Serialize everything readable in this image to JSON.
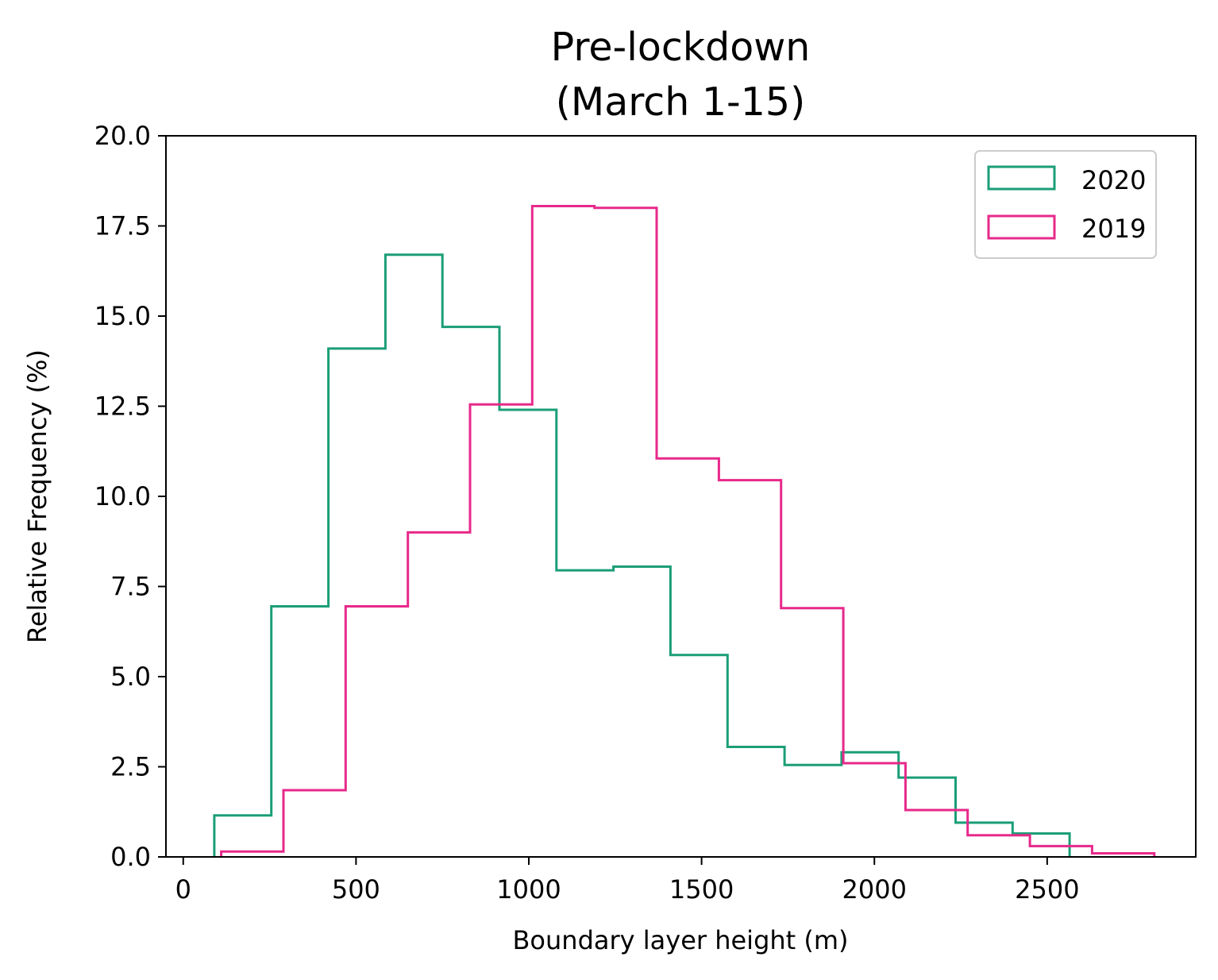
{
  "chart_data": {
    "type": "histogram-step",
    "title": [
      "Pre-lockdown",
      "(March 1-15)"
    ],
    "xlabel": "Boundary layer height (m)",
    "ylabel": "Relative Frequency (%)",
    "xlim": [
      -50,
      2930
    ],
    "ylim": [
      0,
      20
    ],
    "xticks": [
      0,
      500,
      1000,
      1500,
      2000,
      2500
    ],
    "xtick_labels": [
      "0",
      "500",
      "1000",
      "1500",
      "2000",
      "2500"
    ],
    "yticks": [
      0,
      2.5,
      5,
      7.5,
      10,
      12.5,
      15,
      17.5,
      20
    ],
    "ytick_labels": [
      "0.0",
      "2.5",
      "5.0",
      "7.5",
      "10.0",
      "12.5",
      "15.0",
      "17.5",
      "20.0"
    ],
    "grid": false,
    "legend_position": "top-right",
    "series": [
      {
        "name": "2020",
        "color": "#1b9e77",
        "bin_edges": [
          90,
          255,
          420,
          585,
          750,
          915,
          1080,
          1245,
          1410,
          1575,
          1740,
          1905,
          2070,
          2235,
          2400,
          2565
        ],
        "values": [
          1.15,
          6.95,
          14.1,
          16.7,
          14.7,
          12.4,
          7.95,
          8.05,
          5.6,
          3.05,
          2.55,
          2.9,
          2.2,
          0.95,
          0.65
        ]
      },
      {
        "name": "2019",
        "color": "#e7298a",
        "bin_edges": [
          110,
          290,
          470,
          650,
          830,
          1010,
          1190,
          1370,
          1550,
          1730,
          1910,
          2090,
          2270,
          2450,
          2630,
          2810
        ],
        "values": [
          0.15,
          1.85,
          6.95,
          9.0,
          12.55,
          18.05,
          18.0,
          11.05,
          10.45,
          6.9,
          2.6,
          1.3,
          0.6,
          0.3,
          0.1
        ]
      }
    ]
  }
}
